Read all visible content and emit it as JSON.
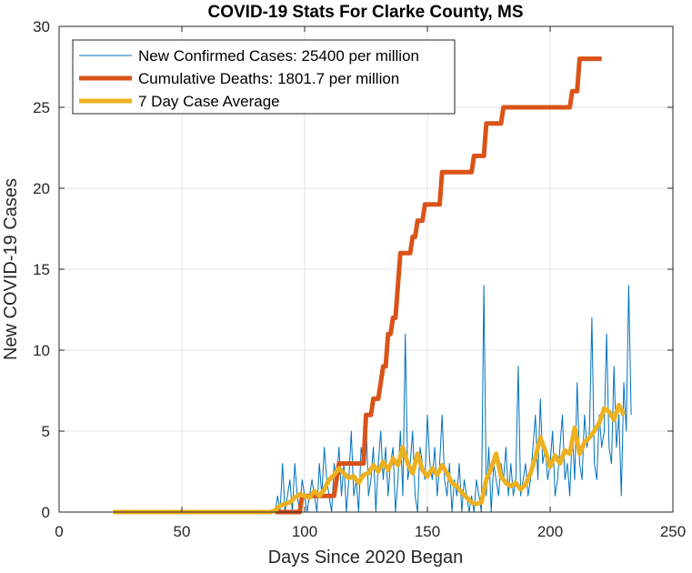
{
  "chart_data": {
    "type": "line",
    "title": "COVID-19 Stats For Clarke County, MS",
    "xlabel": "Days Since 2020 Began",
    "ylabel": "New COVID-19 Cases",
    "xlim": [
      0,
      250
    ],
    "ylim": [
      0,
      30
    ],
    "xticks": [
      0,
      50,
      100,
      150,
      200,
      250
    ],
    "yticks": [
      0,
      5,
      10,
      15,
      20,
      25,
      30
    ],
    "xtick_labels": [
      "0",
      "50",
      "100",
      "150",
      "200",
      "250"
    ],
    "ytick_labels": [
      "0",
      "5",
      "10",
      "15",
      "20",
      "25",
      "30"
    ],
    "grid": true,
    "legend_position": "top-left",
    "series": [
      {
        "name": "New Confirmed Cases: 25400 per million",
        "color": "#0072BD",
        "points": [
          [
            88,
            0
          ],
          [
            89,
            1
          ],
          [
            90,
            0
          ],
          [
            91,
            3
          ],
          [
            92,
            0
          ],
          [
            93,
            1
          ],
          [
            94,
            2
          ],
          [
            95,
            0
          ],
          [
            96,
            3
          ],
          [
            97,
            1
          ],
          [
            98,
            0
          ],
          [
            99,
            2
          ],
          [
            100,
            1
          ],
          [
            101,
            0
          ],
          [
            102,
            1
          ],
          [
            103,
            2
          ],
          [
            104,
            1
          ],
          [
            105,
            0
          ],
          [
            106,
            3
          ],
          [
            107,
            1
          ],
          [
            108,
            4
          ],
          [
            109,
            2
          ],
          [
            110,
            1
          ],
          [
            111,
            0
          ],
          [
            112,
            3
          ],
          [
            113,
            2
          ],
          [
            114,
            4
          ],
          [
            115,
            1
          ],
          [
            116,
            3
          ],
          [
            117,
            0
          ],
          [
            118,
            2
          ],
          [
            119,
            5
          ],
          [
            120,
            1
          ],
          [
            121,
            2
          ],
          [
            122,
            0
          ],
          [
            123,
            4
          ],
          [
            124,
            3
          ],
          [
            125,
            6
          ],
          [
            126,
            1
          ],
          [
            127,
            2
          ],
          [
            128,
            4
          ],
          [
            129,
            0
          ],
          [
            130,
            3
          ],
          [
            131,
            5
          ],
          [
            132,
            2
          ],
          [
            133,
            4
          ],
          [
            134,
            1
          ],
          [
            135,
            3
          ],
          [
            136,
            4
          ],
          [
            137,
            0
          ],
          [
            138,
            2
          ],
          [
            139,
            5
          ],
          [
            140,
            1
          ],
          [
            141,
            11
          ],
          [
            142,
            2
          ],
          [
            143,
            3
          ],
          [
            144,
            5
          ],
          [
            145,
            1
          ],
          [
            146,
            0
          ],
          [
            147,
            4
          ],
          [
            148,
            3
          ],
          [
            149,
            2
          ],
          [
            150,
            6
          ],
          [
            151,
            3
          ],
          [
            152,
            2
          ],
          [
            153,
            4
          ],
          [
            154,
            1
          ],
          [
            155,
            3
          ],
          [
            156,
            6
          ],
          [
            157,
            2
          ],
          [
            158,
            1
          ],
          [
            159,
            3
          ],
          [
            160,
            0
          ],
          [
            161,
            2
          ],
          [
            162,
            1
          ],
          [
            163,
            3
          ],
          [
            164,
            0
          ],
          [
            165,
            2
          ],
          [
            166,
            1
          ],
          [
            167,
            0
          ],
          [
            168,
            1
          ],
          [
            169,
            0
          ],
          [
            170,
            2
          ],
          [
            171,
            1
          ],
          [
            172,
            0
          ],
          [
            173,
            14
          ],
          [
            174,
            1
          ],
          [
            175,
            4
          ],
          [
            176,
            0
          ],
          [
            177,
            3
          ],
          [
            178,
            2
          ],
          [
            179,
            1
          ],
          [
            180,
            3
          ],
          [
            181,
            2
          ],
          [
            182,
            4
          ],
          [
            183,
            1
          ],
          [
            184,
            3
          ],
          [
            185,
            1
          ],
          [
            186,
            2
          ],
          [
            187,
            9
          ],
          [
            188,
            1
          ],
          [
            189,
            2
          ],
          [
            190,
            3
          ],
          [
            191,
            1
          ],
          [
            192,
            2
          ],
          [
            193,
            4
          ],
          [
            194,
            6
          ],
          [
            195,
            2
          ],
          [
            196,
            7
          ],
          [
            197,
            3
          ],
          [
            198,
            4
          ],
          [
            199,
            2
          ],
          [
            200,
            3
          ],
          [
            201,
            5
          ],
          [
            202,
            1
          ],
          [
            203,
            2
          ],
          [
            204,
            4
          ],
          [
            205,
            6
          ],
          [
            206,
            2
          ],
          [
            207,
            3
          ],
          [
            208,
            1
          ],
          [
            209,
            5
          ],
          [
            210,
            2
          ],
          [
            211,
            8
          ],
          [
            212,
            3
          ],
          [
            213,
            2
          ],
          [
            214,
            6
          ],
          [
            215,
            4
          ],
          [
            216,
            5
          ],
          [
            217,
            12
          ],
          [
            218,
            3
          ],
          [
            219,
            2
          ],
          [
            220,
            6
          ],
          [
            221,
            4
          ],
          [
            222,
            5
          ],
          [
            223,
            11
          ],
          [
            224,
            4
          ],
          [
            225,
            3
          ],
          [
            226,
            9
          ],
          [
            227,
            4
          ],
          [
            228,
            6
          ],
          [
            229,
            1
          ],
          [
            230,
            8
          ],
          [
            231,
            5
          ],
          [
            232,
            14
          ],
          [
            233,
            6
          ]
        ]
      },
      {
        "name": "Cumulative Deaths: 1801.7 per million",
        "color": "#D95319",
        "points": [
          [
            88,
            0
          ],
          [
            98,
            0
          ],
          [
            99,
            1
          ],
          [
            112,
            1
          ],
          [
            113,
            2
          ],
          [
            114,
            3
          ],
          [
            117,
            3
          ],
          [
            118,
            3
          ],
          [
            124,
            3
          ],
          [
            125,
            6
          ],
          [
            127,
            6
          ],
          [
            128,
            7
          ],
          [
            130,
            7
          ],
          [
            131,
            8
          ],
          [
            132,
            9
          ],
          [
            133,
            9
          ],
          [
            134,
            11
          ],
          [
            135,
            11
          ],
          [
            136,
            12
          ],
          [
            137,
            12
          ],
          [
            138,
            14
          ],
          [
            139,
            16
          ],
          [
            143,
            16
          ],
          [
            144,
            17
          ],
          [
            145,
            17
          ],
          [
            146,
            18
          ],
          [
            148,
            18
          ],
          [
            149,
            19
          ],
          [
            155,
            19
          ],
          [
            156,
            21
          ],
          [
            168,
            21
          ],
          [
            169,
            22
          ],
          [
            173,
            22
          ],
          [
            174,
            24
          ],
          [
            180,
            24
          ],
          [
            181,
            25
          ],
          [
            208,
            25
          ],
          [
            209,
            26
          ],
          [
            211,
            26
          ],
          [
            212,
            28
          ],
          [
            221,
            28
          ]
        ]
      },
      {
        "name": "7 Day Case Average",
        "color": "#EDB120",
        "points": [
          [
            22,
            0
          ],
          [
            86,
            0
          ],
          [
            88,
            0.1
          ],
          [
            90,
            0.4
          ],
          [
            92,
            0.5
          ],
          [
            94,
            0.6
          ],
          [
            96,
            0.9
          ],
          [
            98,
            1.1
          ],
          [
            100,
            1.0
          ],
          [
            102,
            0.9
          ],
          [
            104,
            1.3
          ],
          [
            106,
            1.0
          ],
          [
            108,
            1.4
          ],
          [
            110,
            2.0
          ],
          [
            112,
            2.3
          ],
          [
            114,
            2.7
          ],
          [
            116,
            2.4
          ],
          [
            118,
            2.1
          ],
          [
            120,
            2.2
          ],
          [
            122,
            1.8
          ],
          [
            124,
            2.3
          ],
          [
            126,
            2.4
          ],
          [
            128,
            2.9
          ],
          [
            130,
            2.5
          ],
          [
            132,
            3.1
          ],
          [
            134,
            2.6
          ],
          [
            136,
            3.3
          ],
          [
            138,
            2.9
          ],
          [
            140,
            4.0
          ],
          [
            142,
            3.0
          ],
          [
            144,
            2.4
          ],
          [
            146,
            3.6
          ],
          [
            148,
            2.6
          ],
          [
            150,
            2.2
          ],
          [
            152,
            2.7
          ],
          [
            154,
            2.3
          ],
          [
            156,
            2.9
          ],
          [
            158,
            2.4
          ],
          [
            160,
            1.8
          ],
          [
            162,
            1.6
          ],
          [
            164,
            1.2
          ],
          [
            166,
            0.9
          ],
          [
            168,
            0.6
          ],
          [
            170,
            0.5
          ],
          [
            172,
            0.6
          ],
          [
            174,
            2.0
          ],
          [
            176,
            2.7
          ],
          [
            178,
            3.6
          ],
          [
            180,
            2.2
          ],
          [
            182,
            1.8
          ],
          [
            184,
            1.6
          ],
          [
            186,
            1.8
          ],
          [
            188,
            1.4
          ],
          [
            190,
            1.7
          ],
          [
            192,
            2.4
          ],
          [
            194,
            3.4
          ],
          [
            196,
            4.6
          ],
          [
            198,
            3.8
          ],
          [
            200,
            2.8
          ],
          [
            202,
            3.5
          ],
          [
            204,
            3.0
          ],
          [
            206,
            3.8
          ],
          [
            208,
            3.6
          ],
          [
            210,
            5.2
          ],
          [
            212,
            3.6
          ],
          [
            214,
            4.3
          ],
          [
            216,
            4.6
          ],
          [
            218,
            5.0
          ],
          [
            220,
            5.5
          ],
          [
            222,
            6.4
          ],
          [
            224,
            6.2
          ],
          [
            226,
            5.7
          ],
          [
            228,
            6.6
          ],
          [
            230,
            6.0
          ]
        ]
      }
    ]
  }
}
